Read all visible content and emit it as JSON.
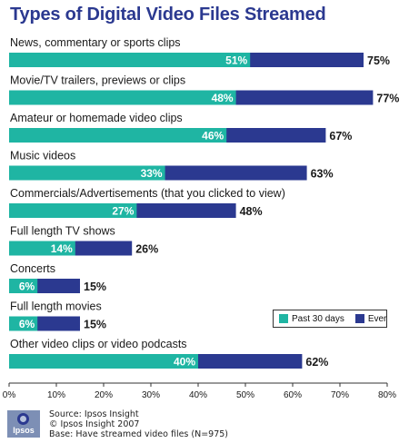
{
  "chart_data": {
    "type": "bar",
    "title": "Types of Digital Video Files Streamed",
    "categories": [
      "News, commentary or sports clips",
      "Movie/TV trailers, previews or clips",
      "Amateur or homemade video clips",
      "Music videos",
      "Commercials/Advertisements (that you clicked to view)",
      "Full length TV shows",
      "Concerts",
      "Full length movies",
      "Other video clips or video podcasts"
    ],
    "series": [
      {
        "name": "Past 30 days",
        "values": [
          51,
          48,
          46,
          33,
          27,
          14,
          6,
          6,
          40
        ],
        "labels": [
          "51%",
          "48%",
          "46%",
          "33%",
          "27%",
          "14%",
          "6%",
          "6%",
          "40%"
        ],
        "color": "#1fb5a3"
      },
      {
        "name": "Ever",
        "values": [
          75,
          77,
          67,
          63,
          48,
          26,
          15,
          15,
          62
        ],
        "labels": [
          "75%",
          "77%",
          "67%",
          "63%",
          "48%",
          "26%",
          "15%",
          "15%",
          "62%"
        ],
        "color": "#2b3990"
      }
    ],
    "xlim": [
      0,
      80
    ],
    "ticks": [
      "0%",
      "10%",
      "20%",
      "30%",
      "40%",
      "50%",
      "60%",
      "70%",
      "80%"
    ],
    "legend_position": "right"
  },
  "source": {
    "line1": "Source: Ipsos Insight",
    "line2": "© Ipsos Insight 2007",
    "line3": "Base: Have streamed video files (N=975)"
  },
  "logo_text": "Ipsos"
}
